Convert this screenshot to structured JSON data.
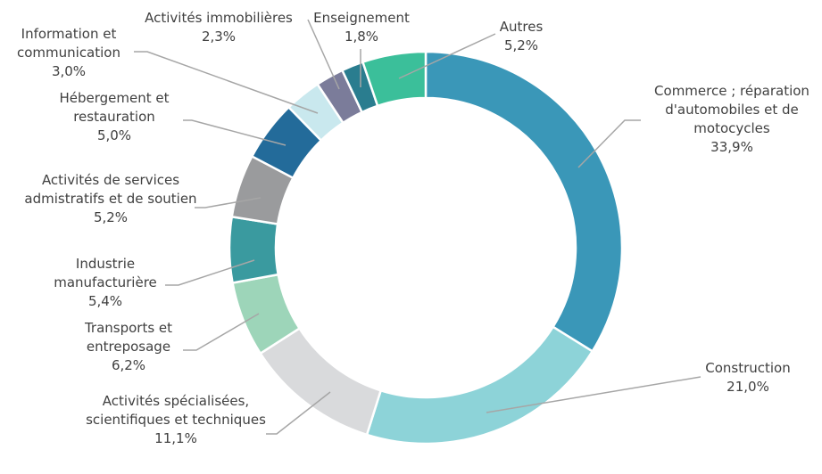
{
  "chart_data": {
    "type": "donut",
    "categories": [
      "Commerce ; réparation d'automobiles et de motocycles",
      "Construction",
      "Activités spécialisées, scientifiques et techniques",
      "Transports et entreposage",
      "Industrie manufacturière",
      "Activités de services admistratifs et de soutien",
      "Hébergement et restauration",
      "Information et communication",
      "Activités immobilières",
      "Enseignement",
      "Autres"
    ],
    "values": [
      33.9,
      21.0,
      11.1,
      6.2,
      5.4,
      5.2,
      5.0,
      3.0,
      2.3,
      1.8,
      5.2
    ],
    "value_labels": [
      "33,9%",
      "21,0%",
      "11,1%",
      "6,2%",
      "5,4%",
      "5,2%",
      "5,0%",
      "3,0%",
      "2,3%",
      "1,8%",
      "5,2%"
    ],
    "colors": [
      "#3a97b8",
      "#8dd3d8",
      "#d9dadc",
      "#9dd5b9",
      "#3a9a9f",
      "#9a9b9d",
      "#236b9a",
      "#c9e8ee",
      "#7b7c9a",
      "#2a7d8f",
      "#3bbf9a"
    ]
  }
}
